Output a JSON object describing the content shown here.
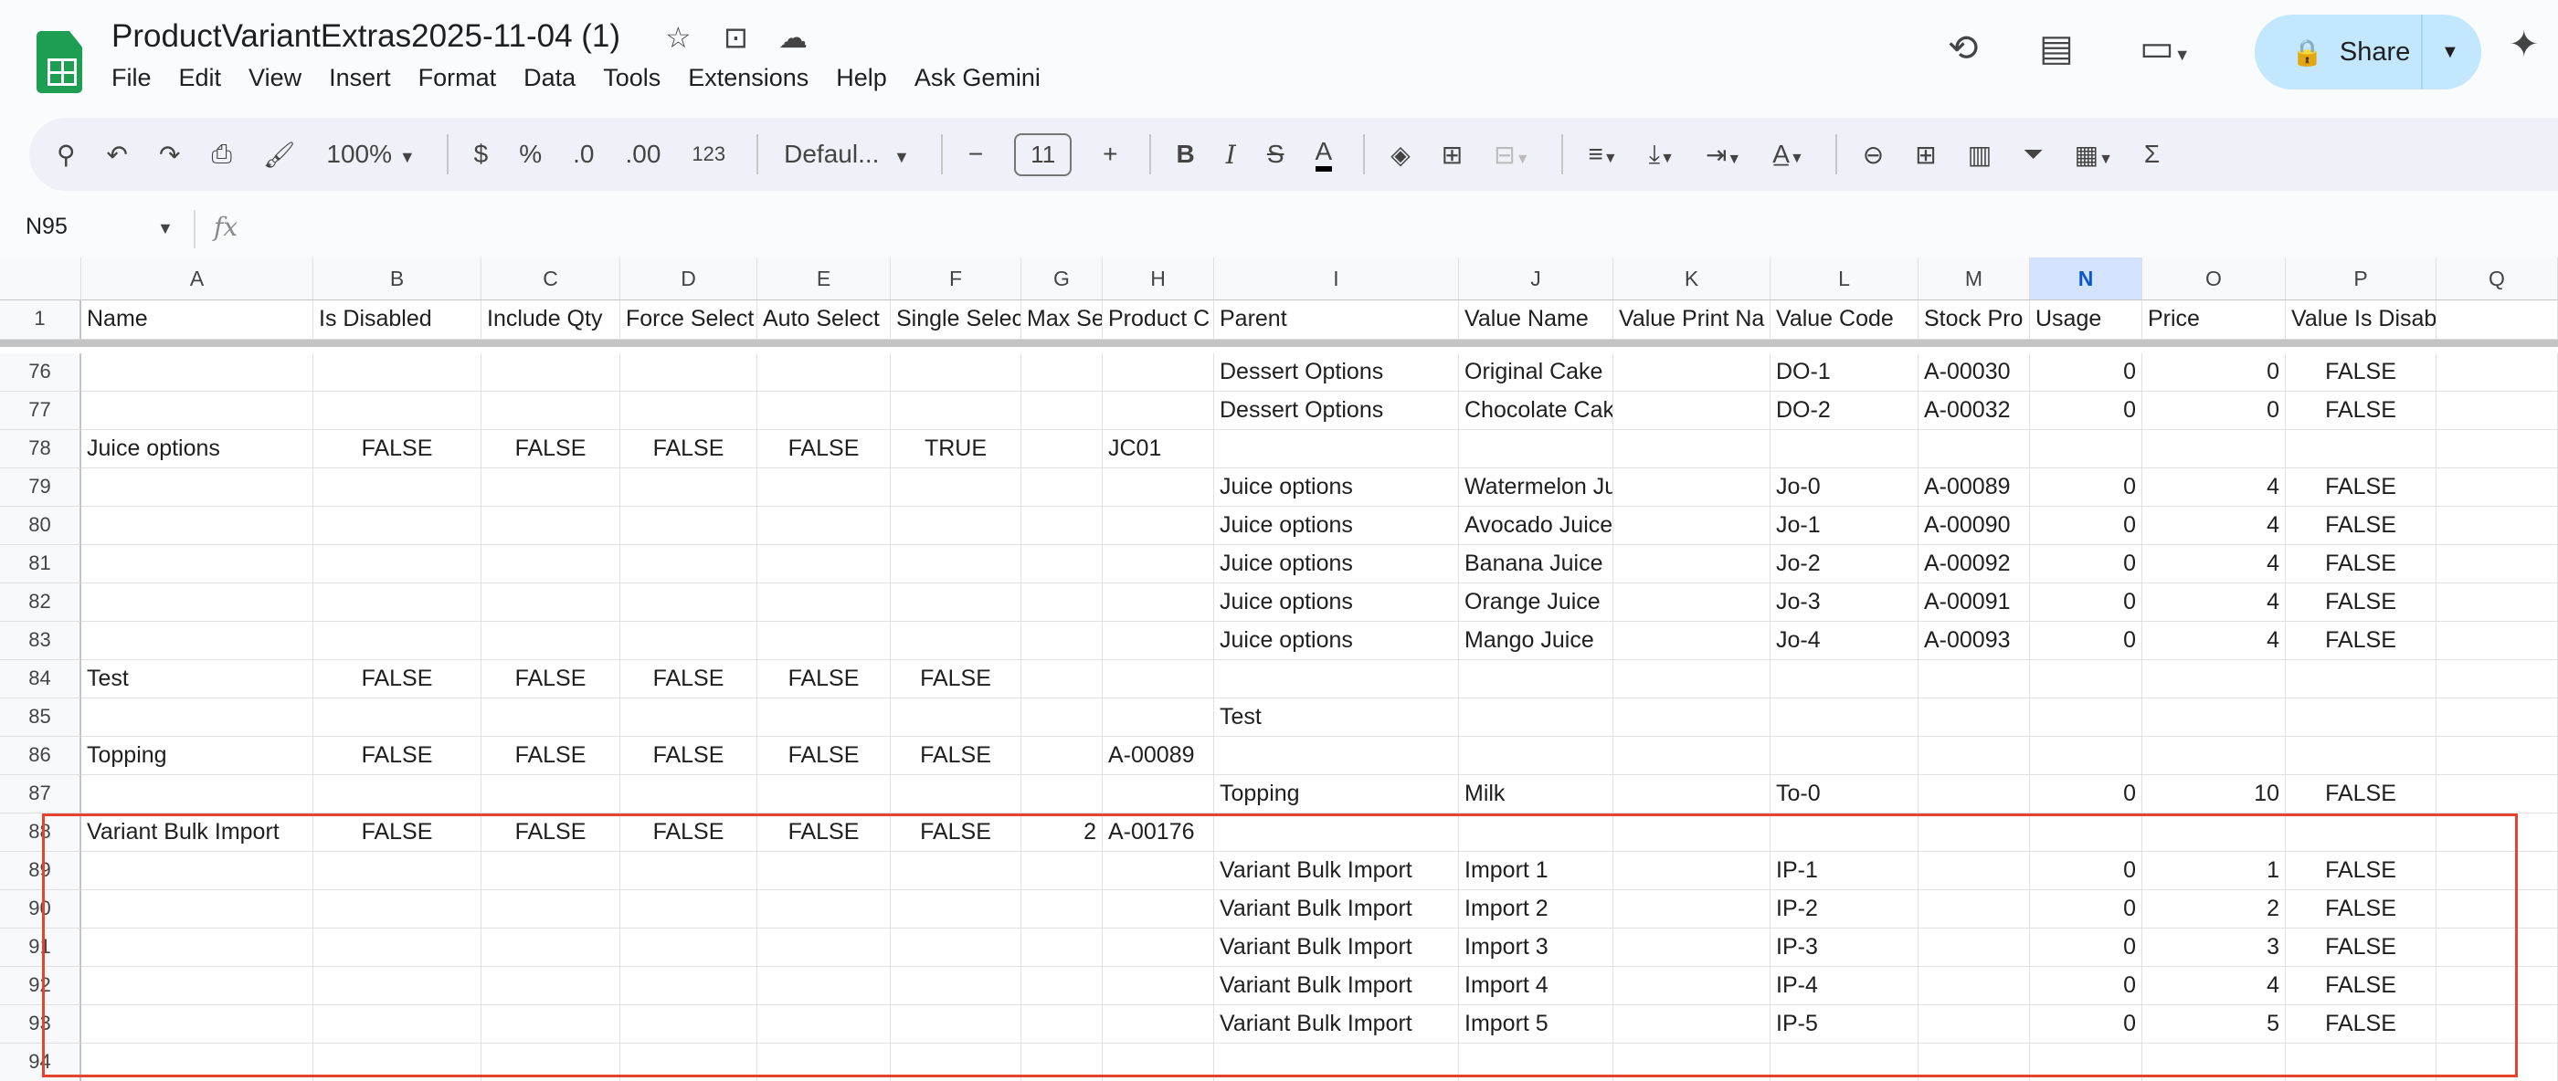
{
  "app": {
    "title": "ProductVariantExtras2025-11-04 (1)",
    "menu": [
      "File",
      "Edit",
      "View",
      "Insert",
      "Format",
      "Data",
      "Tools",
      "Extensions",
      "Help",
      "Ask Gemini"
    ],
    "share_label": "Share"
  },
  "toolbar": {
    "zoom": "100%",
    "currency": "$",
    "percent": "%",
    "decrease_decimal": ".0",
    "increase_decimal": ".00",
    "number_format": "123",
    "font": "Defaul...",
    "font_size": "11",
    "bold": "B",
    "italic": "I"
  },
  "formula_bar": {
    "cell_ref": "N95",
    "fx": "fx",
    "value": ""
  },
  "grid": {
    "columns": [
      "A",
      "B",
      "C",
      "D",
      "E",
      "F",
      "G",
      "H",
      "I",
      "J",
      "K",
      "L",
      "M",
      "N",
      "O",
      "P",
      "Q"
    ],
    "selected_column": "N",
    "header_row": {
      "num": "1",
      "cells": [
        "Name",
        "Is Disabled",
        "Include Qty",
        "Force Select",
        "Auto Select",
        "Single Selec",
        "Max Se",
        "Product C",
        "Parent",
        "Value Name",
        "Value Print Na",
        "Value Code",
        "Stock Pro",
        "Usage",
        "Price",
        "Value Is Disabled",
        ""
      ]
    },
    "rows": [
      {
        "num": "76",
        "cells": [
          "",
          "",
          "",
          "",
          "",
          "",
          "",
          "",
          "Dessert Options",
          "Original Cake",
          "",
          "DO-1",
          "A-00030",
          "0",
          "0",
          "FALSE",
          ""
        ]
      },
      {
        "num": "77",
        "cells": [
          "",
          "",
          "",
          "",
          "",
          "",
          "",
          "",
          "Dessert Options",
          "Chocolate Cake",
          "",
          "DO-2",
          "A-00032",
          "0",
          "0",
          "FALSE",
          ""
        ]
      },
      {
        "num": "78",
        "cells": [
          "Juice options",
          "FALSE",
          "FALSE",
          "FALSE",
          "FALSE",
          "TRUE",
          "",
          "JC01",
          "",
          "",
          "",
          "",
          "",
          "",
          "",
          "",
          ""
        ]
      },
      {
        "num": "79",
        "cells": [
          "",
          "",
          "",
          "",
          "",
          "",
          "",
          "",
          "Juice options",
          "Watermelon Juice",
          "",
          "Jo-0",
          "A-00089",
          "0",
          "4",
          "FALSE",
          ""
        ]
      },
      {
        "num": "80",
        "cells": [
          "",
          "",
          "",
          "",
          "",
          "",
          "",
          "",
          "Juice options",
          "Avocado Juice",
          "",
          "Jo-1",
          "A-00090",
          "0",
          "4",
          "FALSE",
          ""
        ]
      },
      {
        "num": "81",
        "cells": [
          "",
          "",
          "",
          "",
          "",
          "",
          "",
          "",
          "Juice options",
          "Banana Juice",
          "",
          "Jo-2",
          "A-00092",
          "0",
          "4",
          "FALSE",
          ""
        ]
      },
      {
        "num": "82",
        "cells": [
          "",
          "",
          "",
          "",
          "",
          "",
          "",
          "",
          "Juice options",
          "Orange Juice",
          "",
          "Jo-3",
          "A-00091",
          "0",
          "4",
          "FALSE",
          ""
        ]
      },
      {
        "num": "83",
        "cells": [
          "",
          "",
          "",
          "",
          "",
          "",
          "",
          "",
          "Juice options",
          "Mango Juice",
          "",
          "Jo-4",
          "A-00093",
          "0",
          "4",
          "FALSE",
          ""
        ]
      },
      {
        "num": "84",
        "cells": [
          "Test",
          "FALSE",
          "FALSE",
          "FALSE",
          "FALSE",
          "FALSE",
          "",
          "",
          "",
          "",
          "",
          "",
          "",
          "",
          "",
          "",
          ""
        ]
      },
      {
        "num": "85",
        "cells": [
          "",
          "",
          "",
          "",
          "",
          "",
          "",
          "",
          "Test",
          "",
          "",
          "",
          "",
          "",
          "",
          "",
          ""
        ]
      },
      {
        "num": "86",
        "cells": [
          "Topping",
          "FALSE",
          "FALSE",
          "FALSE",
          "FALSE",
          "FALSE",
          "",
          "A-00089",
          "",
          "",
          "",
          "",
          "",
          "",
          "",
          "",
          ""
        ]
      },
      {
        "num": "87",
        "cells": [
          "",
          "",
          "",
          "",
          "",
          "",
          "",
          "",
          "Topping",
          "Milk",
          "",
          "To-0",
          "",
          "0",
          "10",
          "FALSE",
          ""
        ]
      },
      {
        "num": "88",
        "cells": [
          "Variant Bulk Import",
          "FALSE",
          "FALSE",
          "FALSE",
          "FALSE",
          "FALSE",
          "2",
          "A-00176",
          "",
          "",
          "",
          "",
          "",
          "",
          "",
          "",
          ""
        ]
      },
      {
        "num": "89",
        "cells": [
          "",
          "",
          "",
          "",
          "",
          "",
          "",
          "",
          "Variant Bulk Import",
          "Import 1",
          "",
          "IP-1",
          "",
          "0",
          "1",
          "FALSE",
          ""
        ]
      },
      {
        "num": "90",
        "cells": [
          "",
          "",
          "",
          "",
          "",
          "",
          "",
          "",
          "Variant Bulk Import",
          "Import 2",
          "",
          "IP-2",
          "",
          "0",
          "2",
          "FALSE",
          ""
        ]
      },
      {
        "num": "91",
        "cells": [
          "",
          "",
          "",
          "",
          "",
          "",
          "",
          "",
          "Variant Bulk Import",
          "Import 3",
          "",
          "IP-3",
          "",
          "0",
          "3",
          "FALSE",
          ""
        ]
      },
      {
        "num": "92",
        "cells": [
          "",
          "",
          "",
          "",
          "",
          "",
          "",
          "",
          "Variant Bulk Import",
          "Import 4",
          "",
          "IP-4",
          "",
          "0",
          "4",
          "FALSE",
          ""
        ]
      },
      {
        "num": "93",
        "cells": [
          "",
          "",
          "",
          "",
          "",
          "",
          "",
          "",
          "Variant Bulk Import",
          "Import 5",
          "",
          "IP-5",
          "",
          "0",
          "5",
          "FALSE",
          ""
        ]
      },
      {
        "num": "94",
        "cells": [
          "",
          "",
          "",
          "",
          "",
          "",
          "",
          "",
          "",
          "",
          "",
          "",
          "",
          "",
          "",
          "",
          ""
        ]
      }
    ]
  },
  "colors": {
    "highlight_box": "#e5432f",
    "share_bg": "#c2e7ff",
    "selected_col": "#d3e3fd"
  }
}
